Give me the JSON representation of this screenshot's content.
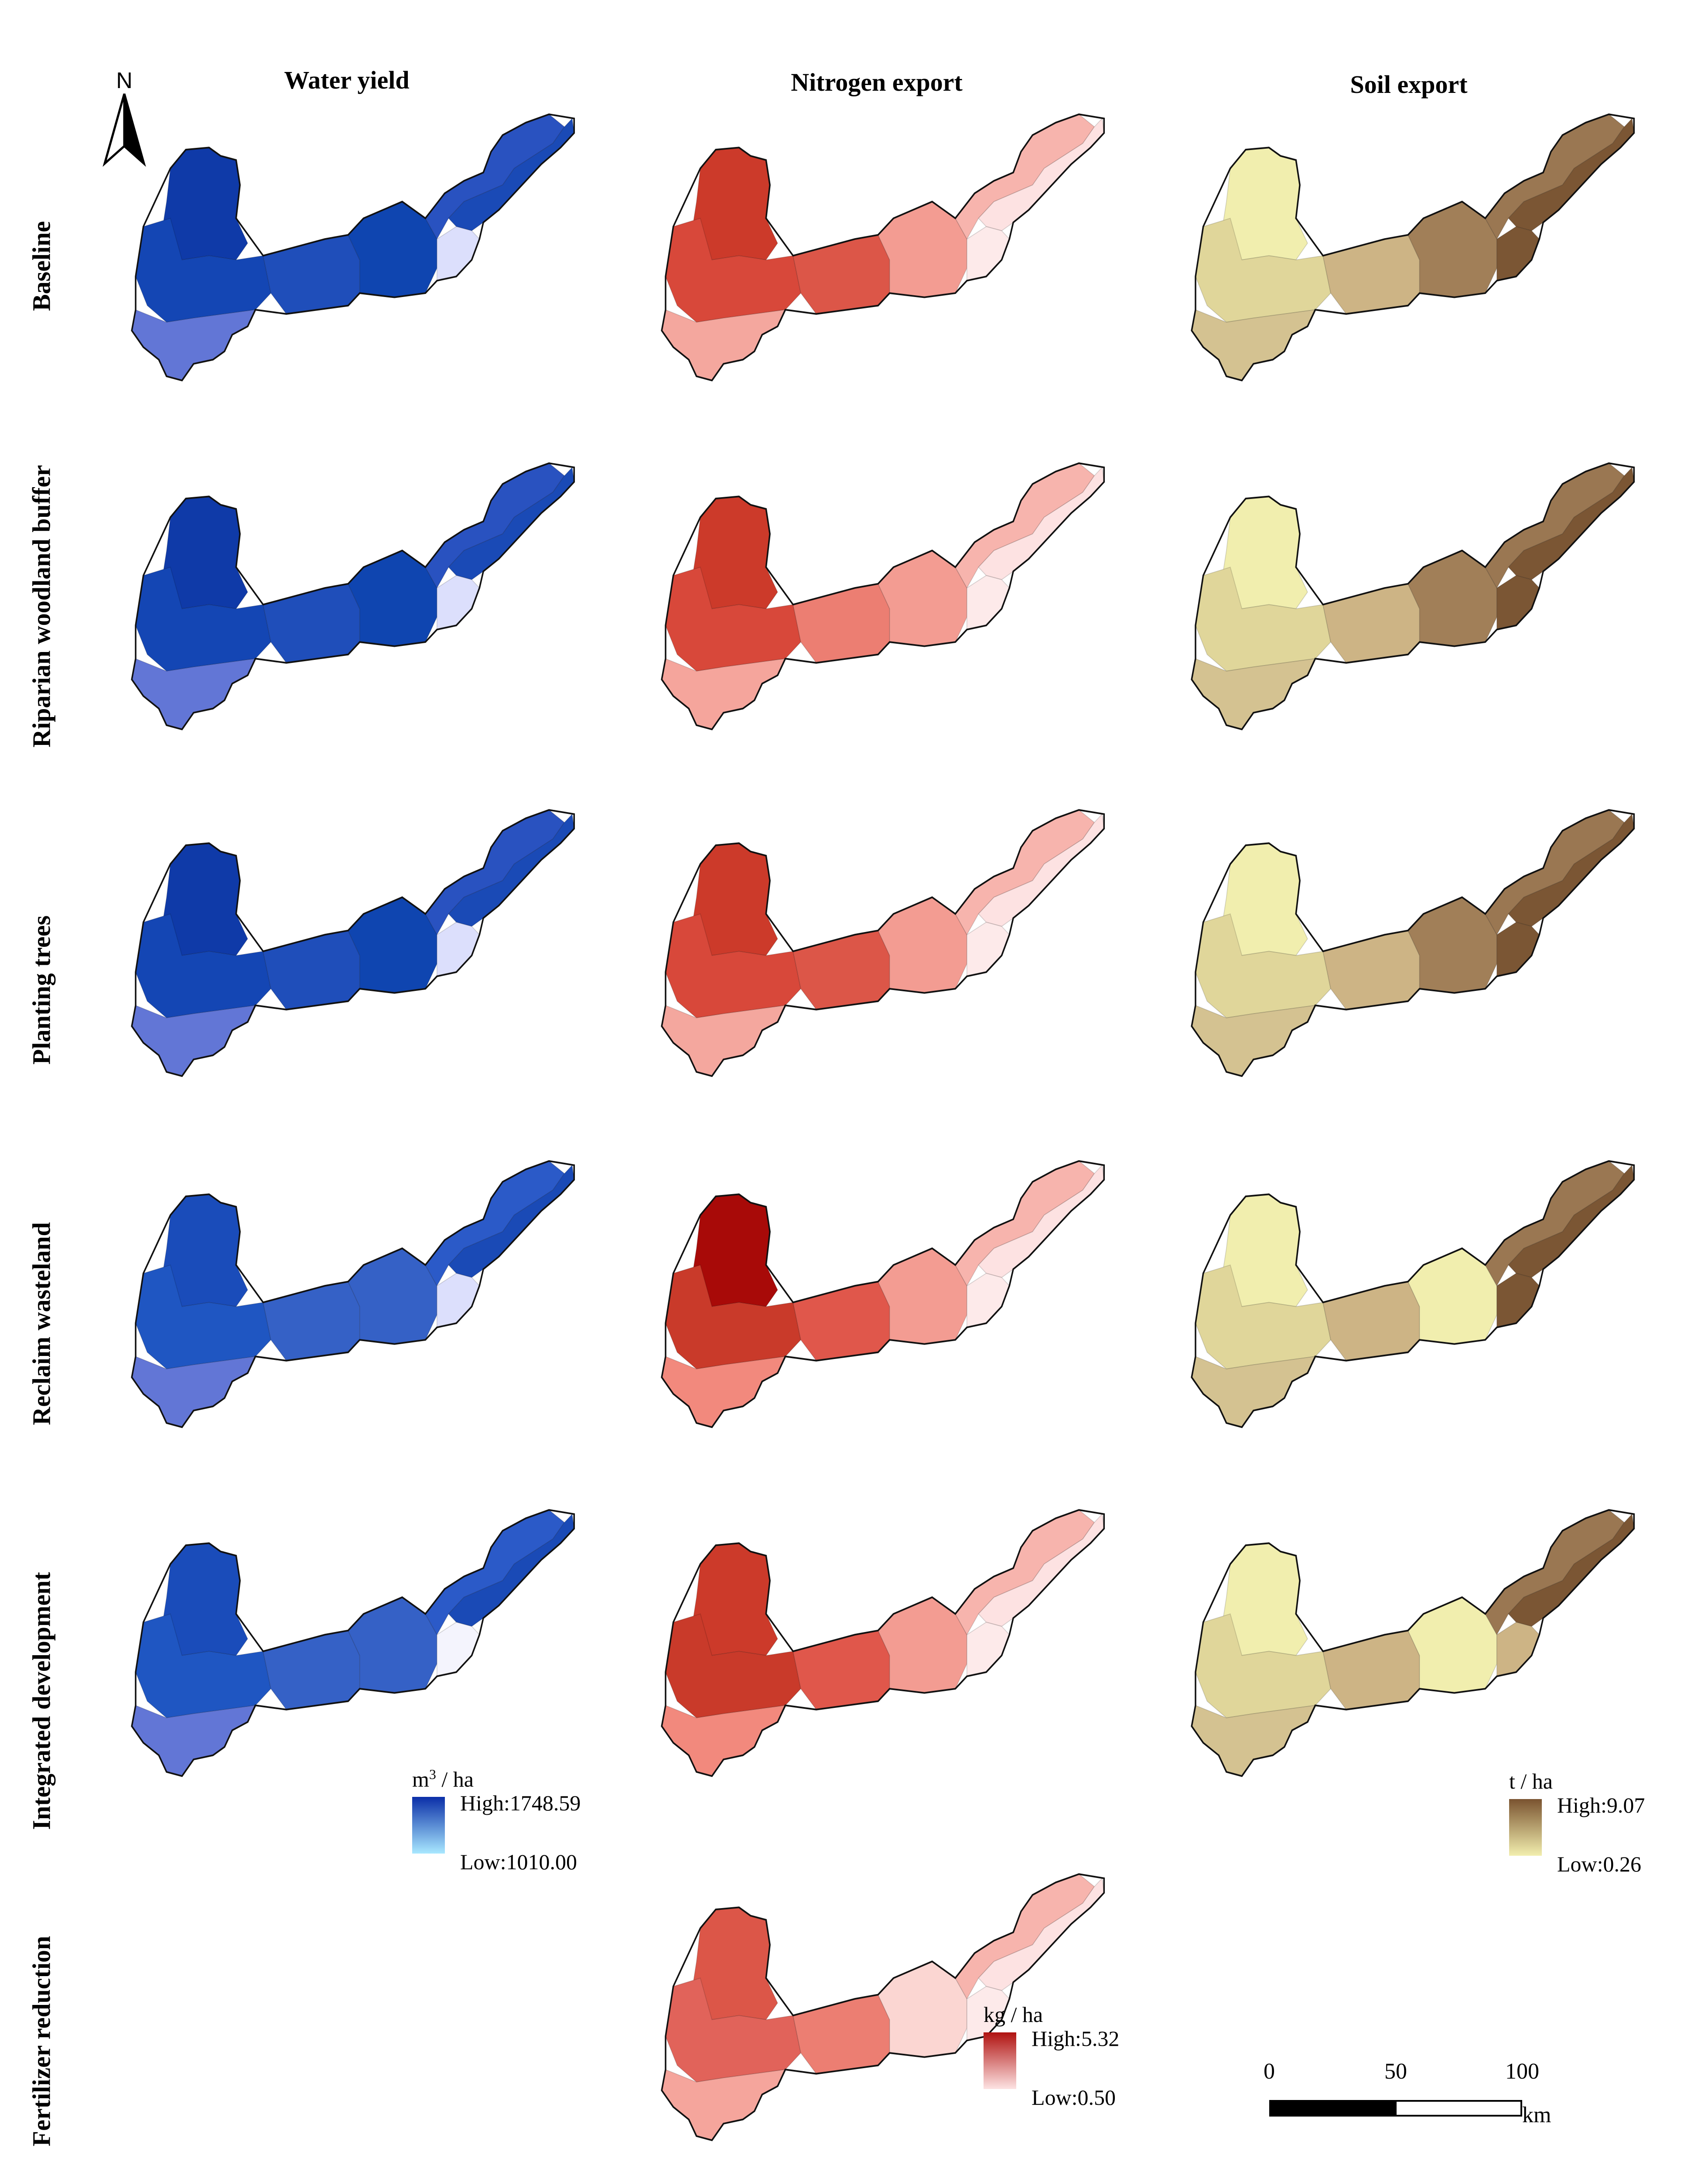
{
  "columns": [
    "Water yield",
    "Nitrogen export",
    "Soil export"
  ],
  "rows": [
    "Baseline",
    "Riparian woodland buffer",
    "Planting trees",
    "Reclaim wasteland",
    "Integrated development",
    "Fertilizer reduction"
  ],
  "north_arrow": {
    "label": "N",
    "icon": "north-arrow-icon"
  },
  "legends": {
    "water": {
      "unit_base": "m",
      "unit_sup": "3",
      "unit_rest": " / ha",
      "high": "High:1748.59",
      "low": "Low:1010.00",
      "color_high": "#0a2ea8",
      "color_low": "#a9e8ff"
    },
    "nitrogen": {
      "unit": "kg / ha",
      "high": "High:5.32",
      "low": "Low:0.50",
      "color_high": "#b01210",
      "color_low": "#fde3e3"
    },
    "soil": {
      "unit": "t / ha",
      "high": "High:9.07",
      "low": "Low:0.26",
      "color_high": "#7a5330",
      "color_low": "#f2eeae"
    }
  },
  "scale_bar": {
    "ticks": [
      "0",
      "50",
      "100"
    ],
    "unit": "km"
  },
  "maps": {
    "water": [
      [
        "#0f3aa8",
        "#1446b4",
        "#1f4eba",
        "#6276d6",
        "#0f45b0",
        "#2952c0",
        "#1a4ab6",
        "#dcdffc"
      ],
      [
        "#0f3aa8",
        "#1446b4",
        "#1f4eba",
        "#6276d6",
        "#0f45b0",
        "#2952c0",
        "#1a4ab6",
        "#dcdffc"
      ],
      [
        "#0f3aa8",
        "#1446b4",
        "#1f4eba",
        "#6276d6",
        "#0f45b0",
        "#2952c0",
        "#1a4ab6",
        "#dcdffc"
      ],
      [
        "#1a4cba",
        "#1f56c2",
        "#3561c6",
        "#6276d6",
        "#3561c6",
        "#2b5ac8",
        "#1a4ab6",
        "#dcdffc"
      ],
      [
        "#1a4cba",
        "#1f56c2",
        "#3561c6",
        "#6276d6",
        "#3561c6",
        "#2b5ac8",
        "#1a4ab6",
        "#f4f4fd"
      ]
    ],
    "nitrogen": [
      [
        "#cc3a2a",
        "#d8483a",
        "#dc5648",
        "#f4a79e",
        "#f39c92",
        "#f7b4ad",
        "#fde2e2",
        "#fdeaea"
      ],
      [
        "#cc3a2a",
        "#d8483a",
        "#ec7e72",
        "#f5a59c",
        "#f39c92",
        "#f7b4ad",
        "#fde2e2",
        "#fdeaea"
      ],
      [
        "#cc3a2a",
        "#d8483a",
        "#dc5648",
        "#f4a79e",
        "#f39c92",
        "#f7b4ad",
        "#fde2e2",
        "#fdeaea"
      ],
      [
        "#a80a08",
        "#c93a2a",
        "#e0574b",
        "#f2897d",
        "#f39c92",
        "#f7b4ad",
        "#fde2e2",
        "#fdeaea"
      ],
      [
        "#cc3a2a",
        "#c93a2a",
        "#e0574b",
        "#f2897d",
        "#f39c92",
        "#f7b4ad",
        "#fde2e2",
        "#fdeaea"
      ],
      [
        "#dc5648",
        "#e1635a",
        "#ec7e72",
        "#f5a59c",
        "#fbd6d2",
        "#f7b4ad",
        "#fde2e2",
        "#fdeaea"
      ]
    ],
    "soil": [
      [
        "#f1eeae",
        "#e0d69a",
        "#cdb485",
        "#d4c291",
        "#a17f58",
        "#9a7752",
        "#7b5634",
        "#7b5634"
      ],
      [
        "#f1eeae",
        "#e0d69a",
        "#cdb485",
        "#d4c291",
        "#a17f58",
        "#9a7752",
        "#7b5634",
        "#7b5634"
      ],
      [
        "#f1eeae",
        "#e0d69a",
        "#cdb485",
        "#d4c291",
        "#a17f58",
        "#9a7752",
        "#7b5634",
        "#7b5634"
      ],
      [
        "#f1eeae",
        "#e0d69a",
        "#cdb485",
        "#d4c291",
        "#f1eeae",
        "#9a7752",
        "#7b5634",
        "#7b5634"
      ],
      [
        "#f1eeae",
        "#e0d69a",
        "#cdb485",
        "#d4c291",
        "#f1eeae",
        "#9a7752",
        "#7b5634",
        "#cdb485"
      ]
    ]
  }
}
